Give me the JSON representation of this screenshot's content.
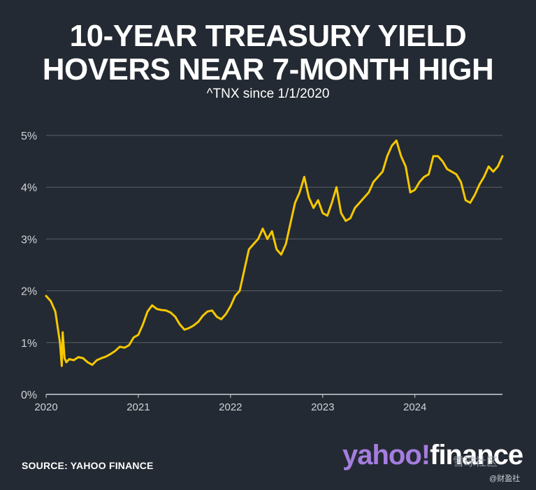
{
  "title_line1": "10-YEAR TREASURY YIELD",
  "title_line2": "HOVERS NEAR 7-MONTH HIGH",
  "subtitle": "^TNX since 1/1/2020",
  "source": "SOURCE: YAHOO FINANCE",
  "brand": {
    "part1": "yahoo!",
    "part2": "finance"
  },
  "watermark": {
    "text1": "雪球社区",
    "text2": "@财盈社"
  },
  "colors": {
    "background": "#242a33",
    "line": "#f5c800",
    "grid": "#5a6068",
    "brand_purple": "#a57dde"
  },
  "chart_data": {
    "type": "line",
    "title": "10-YEAR TREASURY YIELD HOVERS NEAR 7-MONTH HIGH",
    "subtitle": "^TNX since 1/1/2020",
    "xlabel": "",
    "ylabel": "",
    "xlim": [
      2020.0,
      2024.95
    ],
    "ylim": [
      0,
      5
    ],
    "x_ticks": [
      2020,
      2021,
      2022,
      2023,
      2024
    ],
    "x_tick_labels": [
      "2020",
      "2021",
      "2022",
      "2023",
      "2024"
    ],
    "y_ticks": [
      0,
      1,
      2,
      3,
      4,
      5
    ],
    "y_tick_labels": [
      "0%",
      "1%",
      "2%",
      "3%",
      "4%",
      "5%"
    ],
    "grid": "horizontal",
    "series": [
      {
        "name": "",
        "x": [
          2020.0,
          2020.05,
          2020.1,
          2020.15,
          2020.17,
          2020.18,
          2020.2,
          2020.22,
          2020.25,
          2020.3,
          2020.35,
          2020.4,
          2020.45,
          2020.5,
          2020.55,
          2020.6,
          2020.65,
          2020.7,
          2020.75,
          2020.8,
          2020.85,
          2020.9,
          2020.95,
          2021.0,
          2021.05,
          2021.1,
          2021.15,
          2021.2,
          2021.25,
          2021.3,
          2021.35,
          2021.4,
          2021.45,
          2021.5,
          2021.55,
          2021.6,
          2021.65,
          2021.7,
          2021.75,
          2021.8,
          2021.85,
          2021.9,
          2021.95,
          2022.0,
          2022.05,
          2022.1,
          2022.15,
          2022.2,
          2022.25,
          2022.3,
          2022.35,
          2022.4,
          2022.45,
          2022.5,
          2022.55,
          2022.6,
          2022.65,
          2022.7,
          2022.75,
          2022.8,
          2022.85,
          2022.9,
          2022.95,
          2023.0,
          2023.05,
          2023.1,
          2023.15,
          2023.2,
          2023.25,
          2023.3,
          2023.35,
          2023.4,
          2023.45,
          2023.5,
          2023.55,
          2023.6,
          2023.65,
          2023.7,
          2023.75,
          2023.8,
          2023.85,
          2023.9,
          2023.95,
          2024.0,
          2024.05,
          2024.1,
          2024.15,
          2024.2,
          2024.25,
          2024.3,
          2024.35,
          2024.4,
          2024.45,
          2024.5,
          2024.55,
          2024.6,
          2024.65,
          2024.7,
          2024.75,
          2024.8,
          2024.85,
          2024.9,
          2024.95
        ],
        "y": [
          1.9,
          1.8,
          1.6,
          1.0,
          0.55,
          1.2,
          0.7,
          0.62,
          0.68,
          0.66,
          0.72,
          0.7,
          0.62,
          0.57,
          0.66,
          0.7,
          0.73,
          0.78,
          0.84,
          0.92,
          0.9,
          0.95,
          1.1,
          1.15,
          1.35,
          1.6,
          1.72,
          1.65,
          1.63,
          1.62,
          1.58,
          1.5,
          1.35,
          1.25,
          1.28,
          1.33,
          1.4,
          1.52,
          1.6,
          1.62,
          1.5,
          1.45,
          1.55,
          1.7,
          1.9,
          2.0,
          2.4,
          2.8,
          2.9,
          3.0,
          3.2,
          3.0,
          3.15,
          2.8,
          2.7,
          2.9,
          3.3,
          3.7,
          3.9,
          4.2,
          3.8,
          3.6,
          3.75,
          3.5,
          3.45,
          3.7,
          4.0,
          3.5,
          3.35,
          3.4,
          3.6,
          3.7,
          3.8,
          3.9,
          4.1,
          4.2,
          4.3,
          4.6,
          4.8,
          4.9,
          4.6,
          4.4,
          3.9,
          3.95,
          4.1,
          4.2,
          4.25,
          4.6,
          4.6,
          4.5,
          4.35,
          4.3,
          4.25,
          4.1,
          3.75,
          3.7,
          3.85,
          4.05,
          4.2,
          4.4,
          4.3,
          4.4,
          4.6
        ]
      }
    ]
  }
}
